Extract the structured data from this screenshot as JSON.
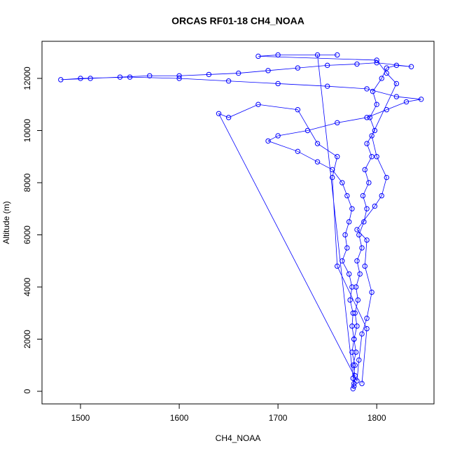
{
  "chart_data": {
    "type": "scatter",
    "title": "ORCAS RF01-18 CH4_NOAA",
    "x_label": "CH4_NOAA",
    "y_label": "Altitude (m)",
    "xlim": [
      1461,
      1858
    ],
    "ylim": [
      -483,
      13423
    ],
    "xticks": [
      1500,
      1600,
      1700,
      1800
    ],
    "yticks": [
      0,
      2000,
      4000,
      6000,
      8000,
      10000,
      12000
    ],
    "series": [
      {
        "color": "#0000ff",
        "x": [
          1776,
          1777,
          1778,
          1776,
          1779,
          1777,
          1780,
          1778,
          1781,
          1779,
          1783,
          1780,
          1785,
          1782,
          1787,
          1790,
          1786,
          1792,
          1788,
          1795,
          1790,
          1798,
          1793,
          1800,
          1796,
          1805,
          1810,
          1820,
          1835,
          1800,
          1780,
          1750,
          1720,
          1690,
          1660,
          1630,
          1600,
          1570,
          1540,
          1510,
          1480,
          1500,
          1550,
          1600,
          1650,
          1700,
          1750,
          1790,
          1820,
          1845,
          1830,
          1810,
          1790,
          1760,
          1730,
          1700,
          1690,
          1720,
          1740,
          1755,
          1765,
          1770,
          1775,
          1772,
          1768,
          1770,
          1765,
          1772,
          1775,
          1773,
          1776,
          1775,
          1777,
          1775,
          1778,
          1776,
          1777,
          1740,
          1760,
          1700,
          1680,
          1800,
          1810,
          1820,
          1795,
          1800,
          1810,
          1805,
          1798,
          1780,
          1790,
          1788,
          1795,
          1790,
          1785,
          1782,
          1780,
          1640,
          1650,
          1680,
          1720,
          1740,
          1760,
          1755,
          1760,
          1790,
          1785
        ],
        "y": [
          100,
          300,
          600,
          1000,
          1500,
          2000,
          2500,
          3000,
          3500,
          4000,
          4500,
          5000,
          5500,
          6000,
          6500,
          7000,
          7500,
          8000,
          8500,
          9000,
          9500,
          10000,
          10500,
          11000,
          11500,
          12000,
          12400,
          12500,
          12450,
          12600,
          12550,
          12500,
          12400,
          12300,
          12200,
          12150,
          12100,
          12100,
          12050,
          12000,
          11950,
          12000,
          12050,
          12000,
          11900,
          11800,
          11700,
          11600,
          11300,
          11200,
          11100,
          10800,
          10500,
          10300,
          10000,
          9800,
          9600,
          9200,
          8800,
          8500,
          8000,
          7500,
          7000,
          6500,
          6000,
          5500,
          5000,
          4500,
          4000,
          3500,
          3000,
          2500,
          2000,
          1500,
          1000,
          500,
          200,
          12900,
          12900,
          12900,
          12850,
          12700,
          12200,
          11800,
          9800,
          9000,
          8200,
          7500,
          7100,
          6200,
          5800,
          4800,
          3800,
          2800,
          2200,
          1200,
          400,
          10650,
          10500,
          11000,
          10800,
          9500,
          9000,
          8200,
          4800,
          2400,
          300
        ]
      }
    ]
  }
}
